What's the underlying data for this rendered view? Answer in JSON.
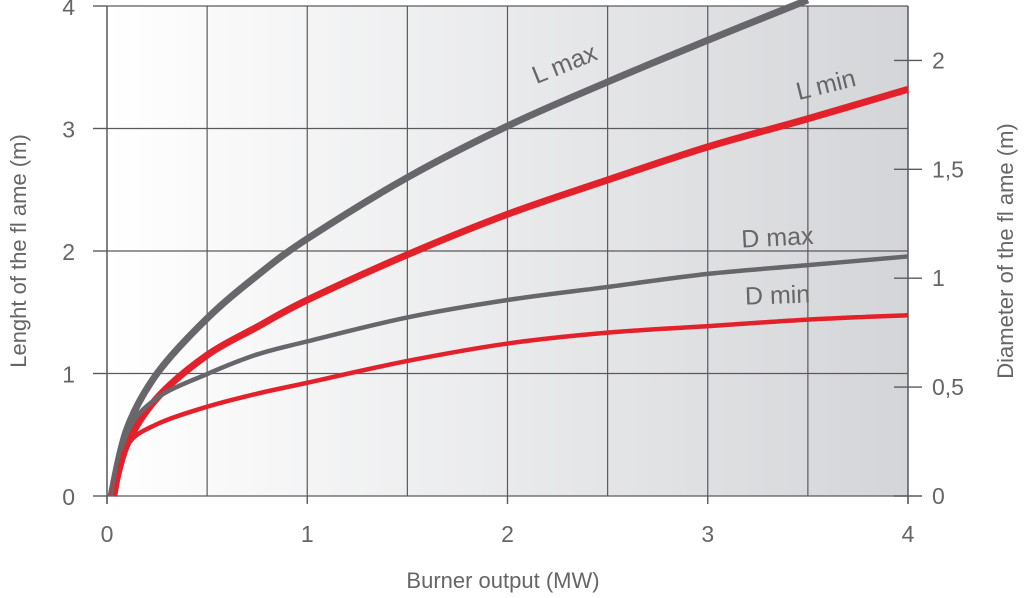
{
  "chart_data": {
    "type": "line",
    "xlabel": "Burner output (MW)",
    "ylabel": "Lenght of the fl ame (m)",
    "y2label": "Diameter of the fl ame (m)",
    "xlim": [
      0,
      4
    ],
    "ylim": [
      0,
      4
    ],
    "y2lim": [
      0,
      2.25
    ],
    "x_ticks": [
      0,
      1,
      2,
      3,
      4
    ],
    "y_ticks": [
      0,
      1,
      2,
      3,
      4
    ],
    "y2_ticks": [
      0,
      0.5,
      1,
      1.5,
      2
    ],
    "y2_tick_labels": [
      "0",
      "0,5",
      "1",
      "1,5",
      "2"
    ],
    "grid": true,
    "series": [
      {
        "name": "L max",
        "axis": "left",
        "color": "#67676b",
        "width": "thick",
        "x": [
          0.02,
          0.1,
          0.25,
          0.5,
          0.75,
          1.0,
          1.5,
          2.0,
          2.5,
          3.0,
          3.5
        ],
        "y": [
          0.0,
          0.55,
          1.0,
          1.45,
          1.8,
          2.1,
          2.6,
          3.02,
          3.38,
          3.72,
          4.05
        ]
      },
      {
        "name": "L min",
        "axis": "left",
        "color": "#e3212b",
        "width": "thick",
        "x": [
          0.03,
          0.1,
          0.25,
          0.5,
          0.75,
          1.0,
          1.5,
          2.0,
          2.5,
          3.0,
          3.5,
          4.0
        ],
        "y": [
          0.0,
          0.42,
          0.8,
          1.15,
          1.38,
          1.6,
          1.97,
          2.3,
          2.58,
          2.85,
          3.08,
          3.32
        ]
      },
      {
        "name": "D max",
        "axis": "right",
        "color": "#67676b",
        "width": "medium",
        "x": [
          0.03,
          0.1,
          0.25,
          0.5,
          0.75,
          1.0,
          1.5,
          2.0,
          2.5,
          3.0,
          3.5,
          4.0
        ],
        "y": [
          0.0,
          0.29,
          0.45,
          0.56,
          0.65,
          0.71,
          0.82,
          0.9,
          0.96,
          1.02,
          1.06,
          1.1
        ]
      },
      {
        "name": "D min",
        "axis": "right",
        "color": "#e3212b",
        "width": "medium",
        "x": [
          0.04,
          0.1,
          0.25,
          0.5,
          0.75,
          1.0,
          1.5,
          2.0,
          2.5,
          3.0,
          3.5,
          4.0
        ],
        "y": [
          0.0,
          0.23,
          0.33,
          0.41,
          0.47,
          0.52,
          0.62,
          0.7,
          0.75,
          0.78,
          0.81,
          0.83
        ]
      }
    ]
  }
}
